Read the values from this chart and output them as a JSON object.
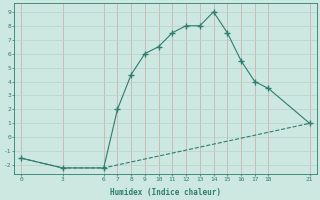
{
  "line1_x": [
    0,
    3,
    6,
    7,
    8,
    9,
    10,
    11,
    12,
    13,
    14,
    15,
    16,
    17,
    18,
    21
  ],
  "line1_y": [
    -1.5,
    -2.2,
    -2.2,
    2.0,
    4.5,
    6.0,
    6.5,
    7.5,
    8.0,
    8.0,
    9.0,
    7.5,
    5.5,
    4.0,
    3.5,
    1.0
  ],
  "line2_x": [
    0,
    3,
    6,
    21
  ],
  "line2_y": [
    -1.5,
    -2.2,
    -2.2,
    1.0
  ],
  "line_color": "#2e7d6e",
  "bg_color": "#cce8e0",
  "grid_color_minor": "#e8c8c8",
  "grid_color_major": "#b8d8d0",
  "xlabel": "Humidex (Indice chaleur)",
  "xticks": [
    0,
    3,
    6,
    7,
    8,
    9,
    10,
    11,
    12,
    13,
    14,
    15,
    16,
    17,
    18,
    21
  ],
  "yticks": [
    -2,
    -1,
    0,
    1,
    2,
    3,
    4,
    5,
    6,
    7,
    8,
    9
  ],
  "xlim": [
    -0.5,
    21.5
  ],
  "ylim": [
    -2.6,
    9.6
  ]
}
